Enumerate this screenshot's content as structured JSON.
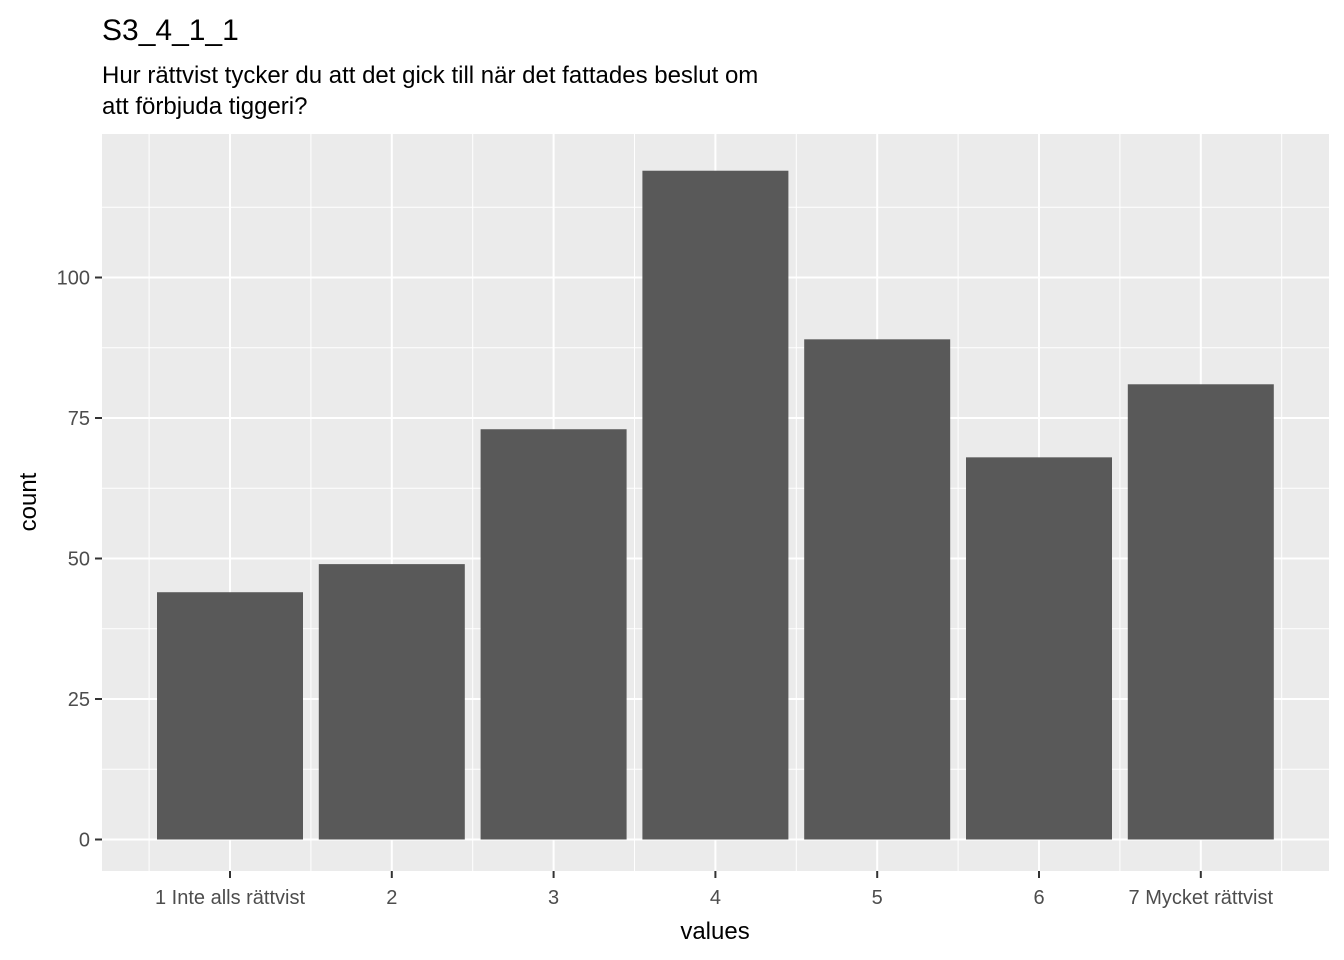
{
  "chart_data": {
    "type": "bar",
    "title": "S3_4_1_1",
    "subtitle": [
      "Hur rättvist tycker du att det gick till när det fattades beslut om",
      "att förbjuda tiggeri?"
    ],
    "xlabel": "values",
    "ylabel": "count",
    "categories": [
      "1 Inte alls rättvist",
      "2",
      "3",
      "4",
      "5",
      "6",
      "7 Mycket rättvist"
    ],
    "values": [
      44,
      49,
      73,
      119,
      89,
      68,
      81
    ],
    "ylim": [
      0,
      125
    ],
    "yticks": [
      0,
      25,
      50,
      75,
      100
    ],
    "ytick_labels": [
      "0",
      "25",
      "50",
      "75",
      "100"
    ],
    "grid": true,
    "colors": {
      "panel": "#ebebeb",
      "bar": "#595959",
      "grid": "#ffffff"
    }
  }
}
